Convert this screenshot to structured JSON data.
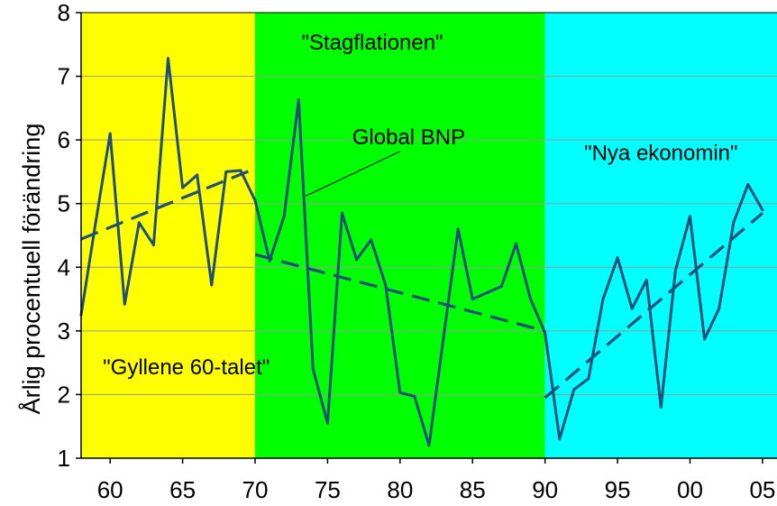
{
  "chart_data": {
    "type": "line",
    "title": "",
    "xlabel": "",
    "ylabel": "Årlig procentuell förändring",
    "ylim": [
      1,
      8
    ],
    "xlim": [
      1958,
      2006
    ],
    "x_tick_labels": [
      "60",
      "65",
      "70",
      "75",
      "80",
      "85",
      "90",
      "95",
      "00",
      "05"
    ],
    "x_tick_values": [
      1960,
      1965,
      1970,
      1975,
      1980,
      1985,
      1990,
      1995,
      2000,
      2005
    ],
    "y_ticks": [
      1,
      2,
      3,
      4,
      5,
      6,
      7,
      8
    ],
    "grid": "horizontal",
    "regions": [
      {
        "from": 1958,
        "to": 1970,
        "color": "#ffff00"
      },
      {
        "from": 1970,
        "to": 1990,
        "color": "#00ff00"
      },
      {
        "from": 1990,
        "to": 2006,
        "color": "#00ffff"
      }
    ],
    "series": [
      {
        "name": "Global BNP",
        "color": "#1f4e79",
        "x": [
          1958,
          1959,
          1960,
          1961,
          1962,
          1963,
          1964,
          1965,
          1966,
          1967,
          1968,
          1969,
          1970,
          1971,
          1972,
          1973,
          1974,
          1975,
          1976,
          1977,
          1978,
          1979,
          1980,
          1981,
          1982,
          1983,
          1984,
          1985,
          1986,
          1987,
          1988,
          1989,
          1990,
          1991,
          1992,
          1993,
          1994,
          1995,
          1996,
          1997,
          1998,
          1999,
          2000,
          2001,
          2002,
          2003,
          2004,
          2005
        ],
        "values": [
          3.25,
          4.7,
          6.1,
          3.42,
          4.7,
          4.35,
          7.28,
          5.25,
          5.45,
          3.72,
          5.5,
          5.52,
          5.05,
          4.1,
          4.8,
          6.63,
          2.4,
          1.55,
          4.85,
          4.12,
          4.43,
          3.72,
          2.03,
          1.97,
          1.2,
          2.9,
          4.6,
          3.5,
          3.6,
          3.7,
          4.37,
          3.5,
          2.97,
          1.3,
          2.08,
          2.25,
          3.5,
          4.15,
          3.35,
          3.8,
          1.8,
          3.95,
          4.8,
          2.87,
          3.35,
          4.7,
          5.3,
          4.9
        ]
      }
    ],
    "trendlines": [
      {
        "x": [
          1957,
          1970
        ],
        "y": [
          4.35,
          5.55
        ]
      },
      {
        "x": [
          1970,
          1990
        ],
        "y": [
          4.2,
          3.0
        ]
      },
      {
        "x": [
          1990,
          2005
        ],
        "y": [
          1.95,
          4.85
        ]
      }
    ],
    "annotations": [
      {
        "id": "gyllene",
        "text": "\"Gyllene  60-talet\"",
        "x": 1959.5,
        "y": 2.32
      },
      {
        "id": "stag",
        "text": "\"Stagflationen\"",
        "x": 1973.2,
        "y": 7.42
      },
      {
        "id": "bnp",
        "text": "Global  BNP",
        "x": 1976.7,
        "y": 5.93
      },
      {
        "id": "nya",
        "text": "\"Nya  ekonomin\"",
        "x": 1992.7,
        "y": 5.68
      }
    ],
    "pointer": {
      "from_x": 1980,
      "from_y": 5.82,
      "to_x": 1973.5,
      "to_y": 5.12
    }
  }
}
